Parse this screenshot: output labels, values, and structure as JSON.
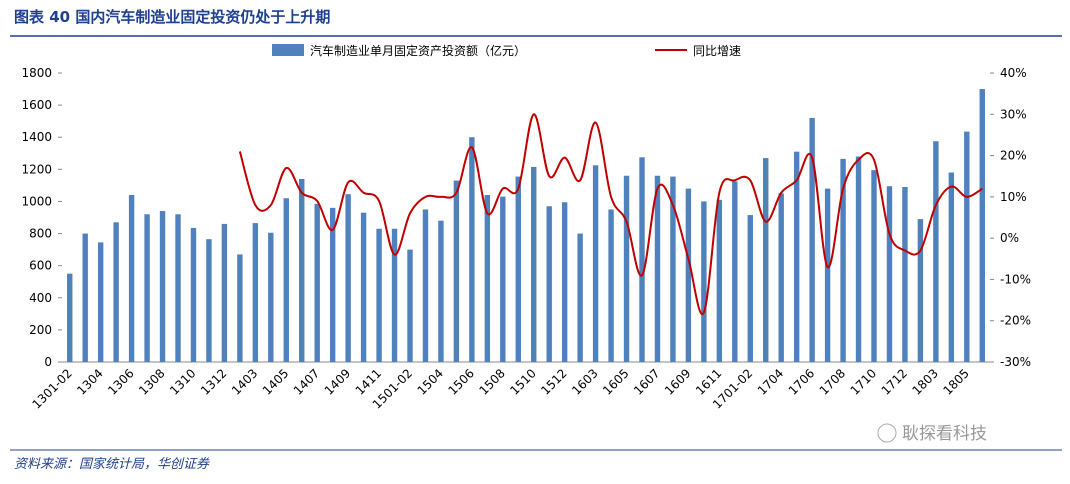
{
  "chart_data": {
    "type": "bar_line",
    "title": "图表 40  国内汽车制造业固定投资仍处于上升期",
    "source": "资料来源：国家统计局，华创证券",
    "watermark": "耿探看科技",
    "categories": [
      "1301-02",
      null,
      "1304",
      null,
      "1306",
      null,
      "1308",
      null,
      "1310",
      null,
      "1312",
      null,
      "1403",
      null,
      "1405",
      null,
      "1407",
      null,
      "1409",
      null,
      "1411",
      null,
      "1501-02",
      null,
      "1504",
      null,
      "1506",
      null,
      "1508",
      null,
      "1510",
      null,
      "1512",
      null,
      "1603",
      null,
      "1605",
      null,
      "1607",
      null,
      "1609",
      null,
      "1611",
      null,
      "1701-02",
      null,
      "1704",
      null,
      "1706",
      null,
      "1708",
      null,
      "1710",
      null,
      "1712",
      null,
      "1803",
      null,
      "1805",
      null
    ],
    "series": [
      {
        "name": "汽车制造业单月固定资产投资额（亿元）",
        "color": "#4f81bd",
        "type": "bar",
        "values": [
          550,
          800,
          745,
          870,
          1040,
          920,
          940,
          920,
          835,
          765,
          860,
          670,
          865,
          805,
          1020,
          1140,
          985,
          960,
          1045,
          930,
          830,
          830,
          700,
          950,
          880,
          1130,
          1400,
          1040,
          1030,
          1155,
          1215,
          970,
          995,
          800,
          1225,
          950,
          1160,
          1275,
          1160,
          1155,
          1080,
          1000,
          1010,
          1125,
          915,
          1270,
          1050,
          1310,
          1520,
          1080,
          1265,
          1280,
          1195,
          1095,
          1090,
          890,
          1375,
          1180,
          1435,
          1700
        ]
      },
      {
        "name": "同比增速",
        "color": "#c00000",
        "type": "line",
        "axis": "y2",
        "values": [
          null,
          null,
          null,
          null,
          null,
          null,
          null,
          null,
          null,
          null,
          null,
          21,
          8,
          8,
          17,
          11,
          9,
          2,
          13.5,
          11,
          9,
          -4,
          6,
          10,
          10,
          11,
          22,
          6,
          12,
          12,
          30,
          15,
          19.5,
          14,
          28,
          10,
          4,
          -9,
          12,
          8,
          -5,
          -18,
          11,
          14,
          14,
          4,
          11,
          14,
          19.5,
          -7,
          12,
          19,
          19,
          1,
          -3,
          -3,
          8,
          12.5,
          10,
          12
        ]
      }
    ],
    "ylim": [
      0,
      1800
    ],
    "yticks": [
      0,
      200,
      400,
      600,
      800,
      1000,
      1200,
      1400,
      1600,
      1800
    ],
    "y2lim": [
      -30,
      40
    ],
    "y2ticks": [
      {
        "value": -30,
        "label": "-30%"
      },
      {
        "value": -20,
        "label": "-20%"
      },
      {
        "value": -10,
        "label": "-10%"
      },
      {
        "value": 0,
        "label": "0%"
      },
      {
        "value": 10,
        "label": "10%"
      },
      {
        "value": 20,
        "label": "20%"
      },
      {
        "value": 30,
        "label": "30%"
      },
      {
        "value": 40,
        "label": "40%"
      }
    ]
  }
}
